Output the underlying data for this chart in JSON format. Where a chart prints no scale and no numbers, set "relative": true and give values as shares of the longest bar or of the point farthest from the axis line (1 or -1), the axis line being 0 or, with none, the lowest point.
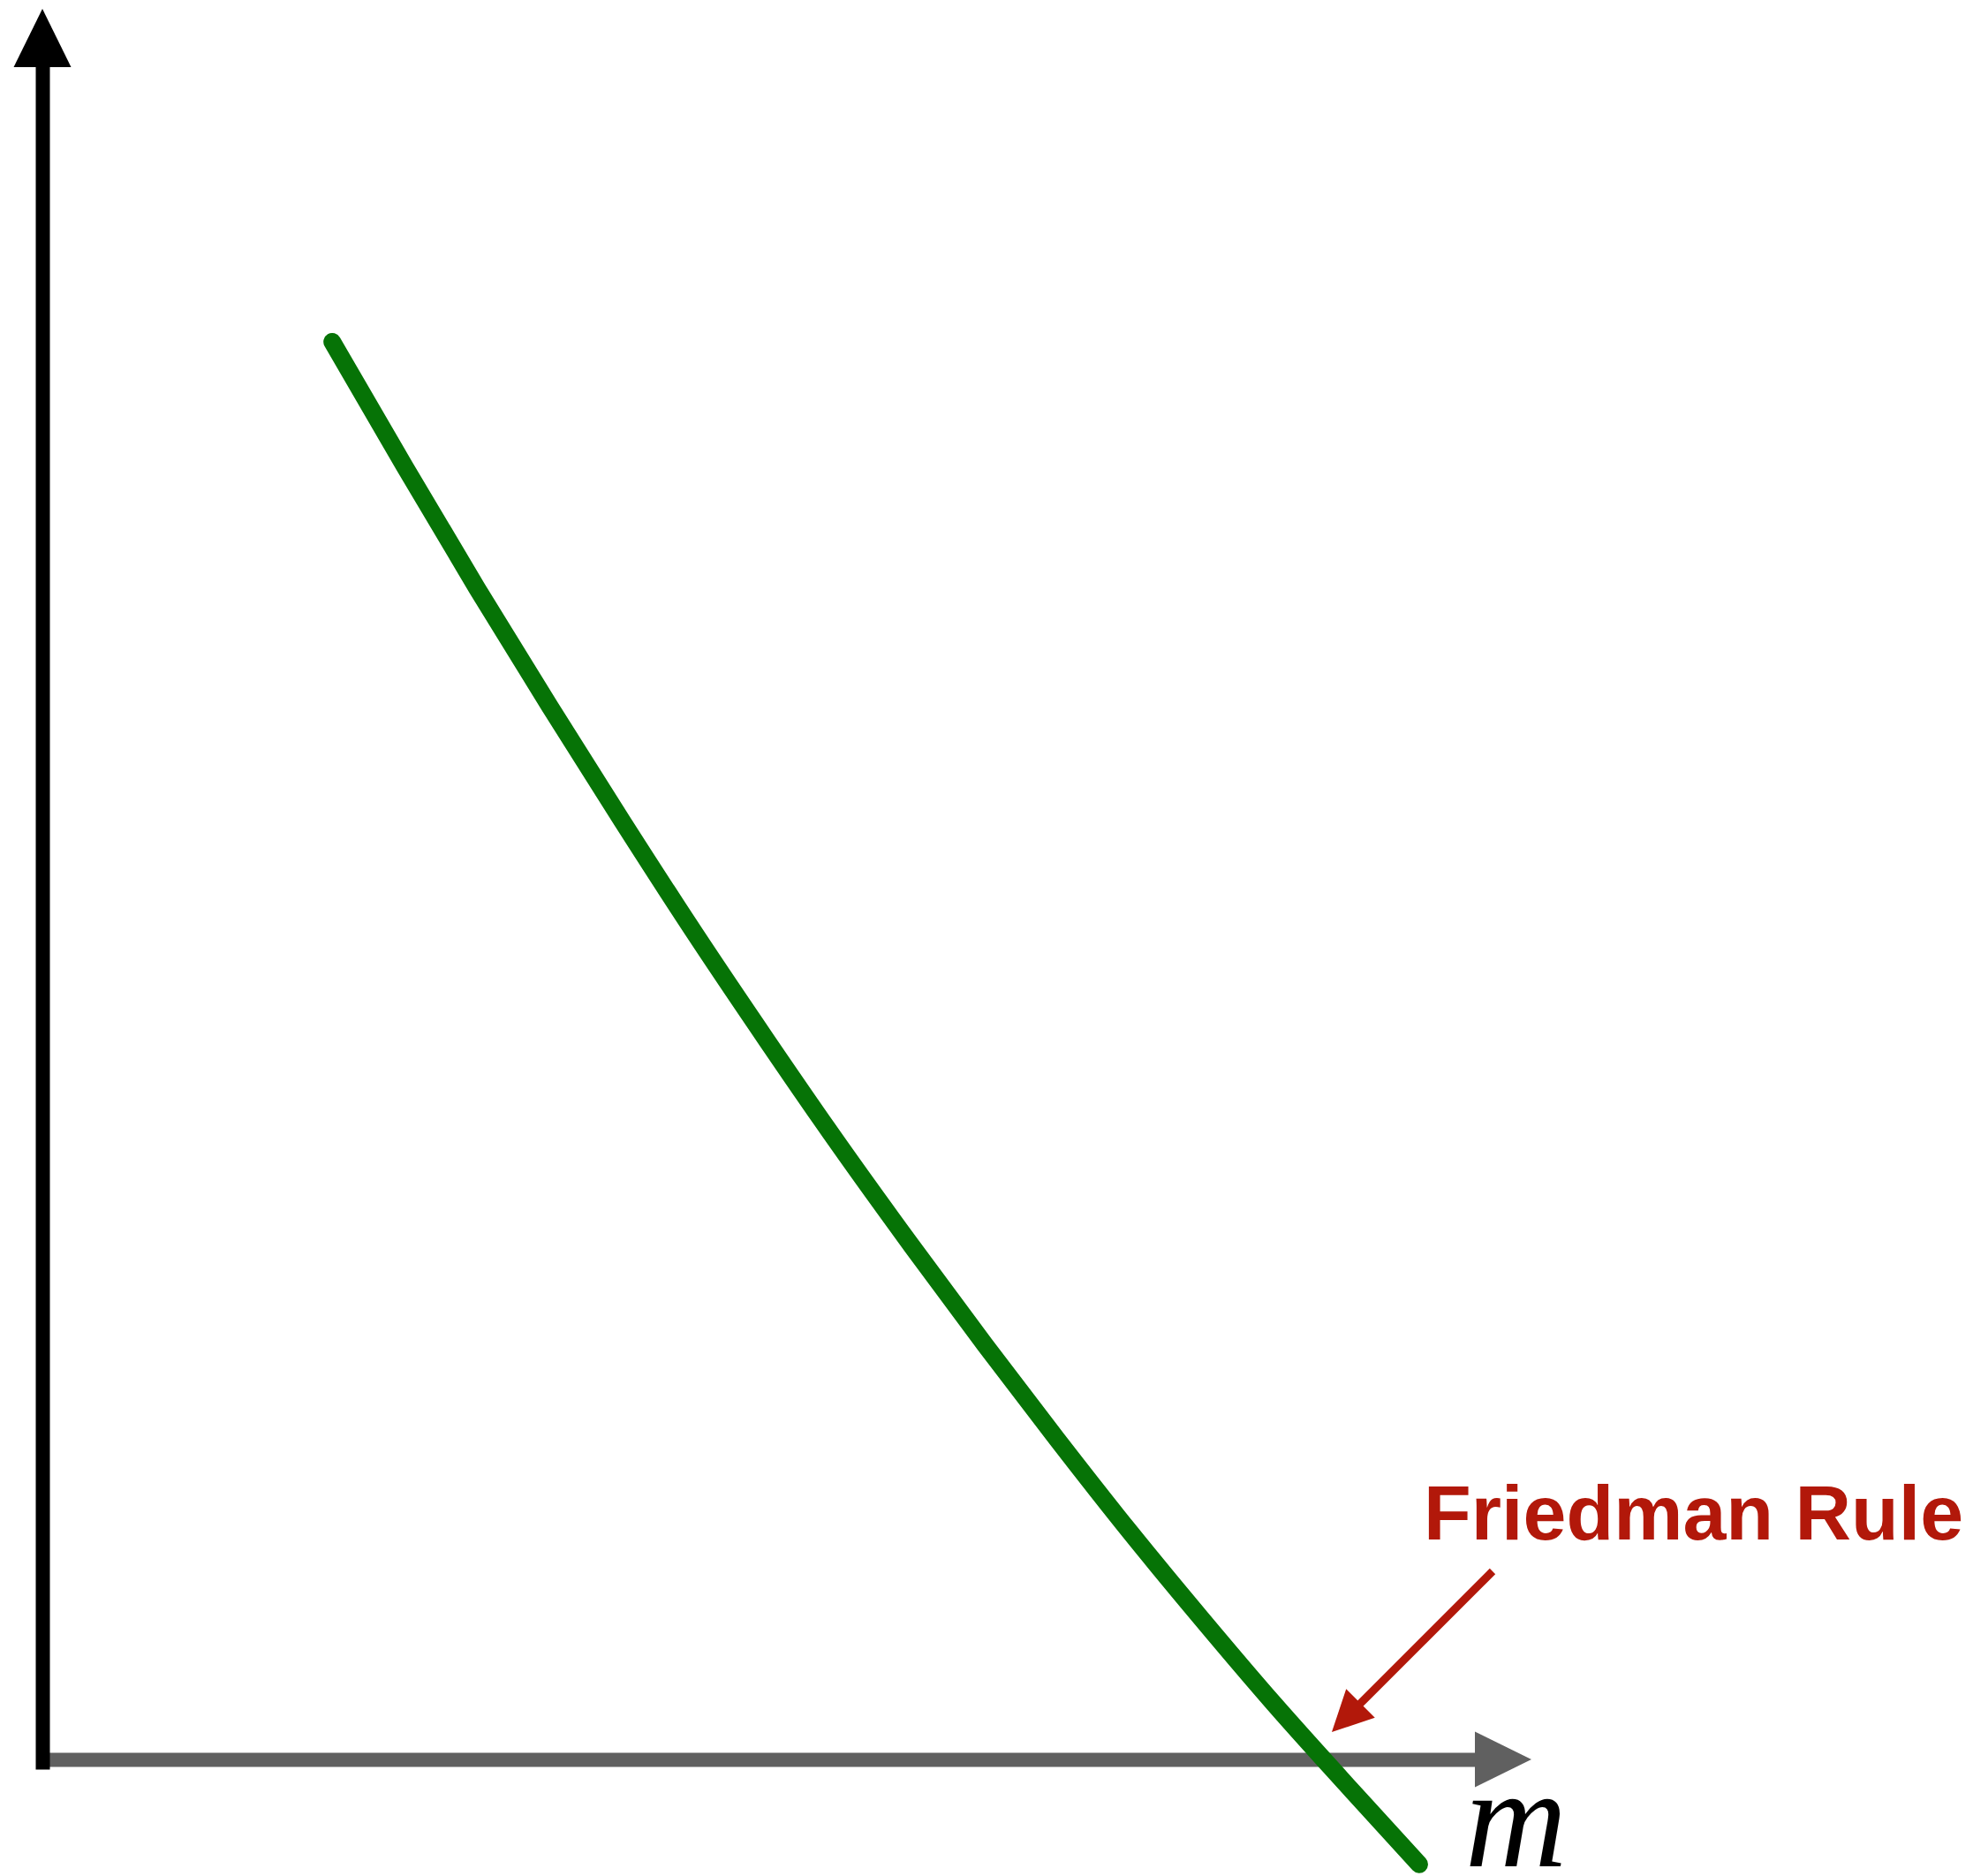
{
  "chart_data": {
    "type": "line",
    "relative": true,
    "xlabel": "m",
    "categories": [
      null,
      null,
      null,
      null,
      null,
      null,
      null,
      null,
      null,
      null,
      null,
      null,
      null,
      null,
      null,
      null,
      null,
      null,
      null,
      null,
      null
    ],
    "values": [
      null,
      null,
      null,
      null,
      1,
      0.912,
      0.826,
      0.743,
      0.662,
      0.583,
      0.507,
      0.433,
      0.362,
      0.293,
      0.226,
      0.161,
      0.099,
      0.039,
      -0.018,
      -0.074,
      null
    ],
    "color": "#067306",
    "annotations": [
      "Friedman Rule"
    ]
  }
}
